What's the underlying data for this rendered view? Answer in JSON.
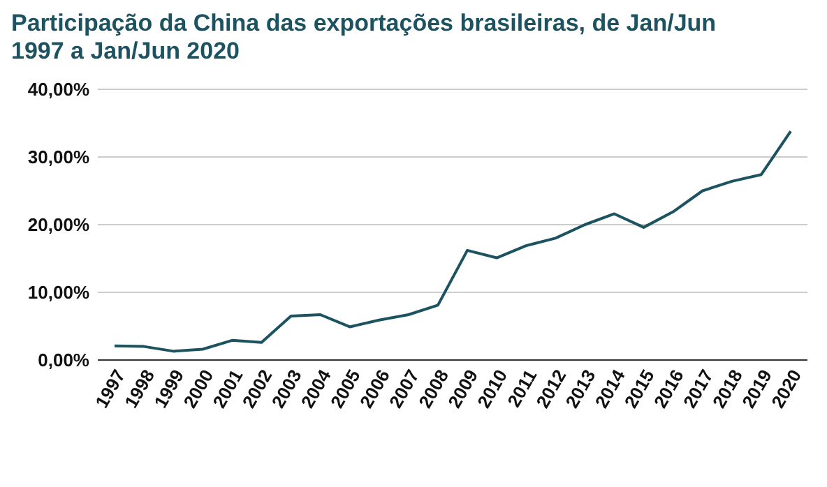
{
  "chart_data": {
    "type": "line",
    "title": "Participação da China das exportações brasileiras, de Jan/Jun 1997 a Jan/Jun 2020",
    "categories": [
      "1997",
      "1998",
      "1999",
      "2000",
      "2001",
      "2002",
      "2003",
      "2004",
      "2005",
      "2006",
      "2007",
      "2008",
      "2009",
      "2010",
      "2011",
      "2012",
      "2013",
      "2014",
      "2015",
      "2016",
      "2017",
      "2018",
      "2019",
      "2020"
    ],
    "series": [
      {
        "color": "#1d5260",
        "values": [
          2.1,
          2.0,
          1.3,
          1.6,
          2.9,
          2.6,
          6.5,
          6.7,
          4.9,
          5.9,
          6.7,
          8.1,
          16.2,
          15.1,
          16.9,
          18.0,
          20.0,
          21.6,
          19.6,
          21.9,
          25.0,
          26.4,
          27.4,
          33.8
        ]
      }
    ],
    "ylim": [
      0,
      40
    ],
    "yticks": [
      {
        "value": 0,
        "label": "0,00%"
      },
      {
        "value": 10,
        "label": "10,00%"
      },
      {
        "value": 20,
        "label": "20,00%"
      },
      {
        "value": 30,
        "label": "30,00%"
      },
      {
        "value": 40,
        "label": "40,00%"
      }
    ],
    "grid": "y",
    "marker": "none",
    "line_style": "solid"
  }
}
